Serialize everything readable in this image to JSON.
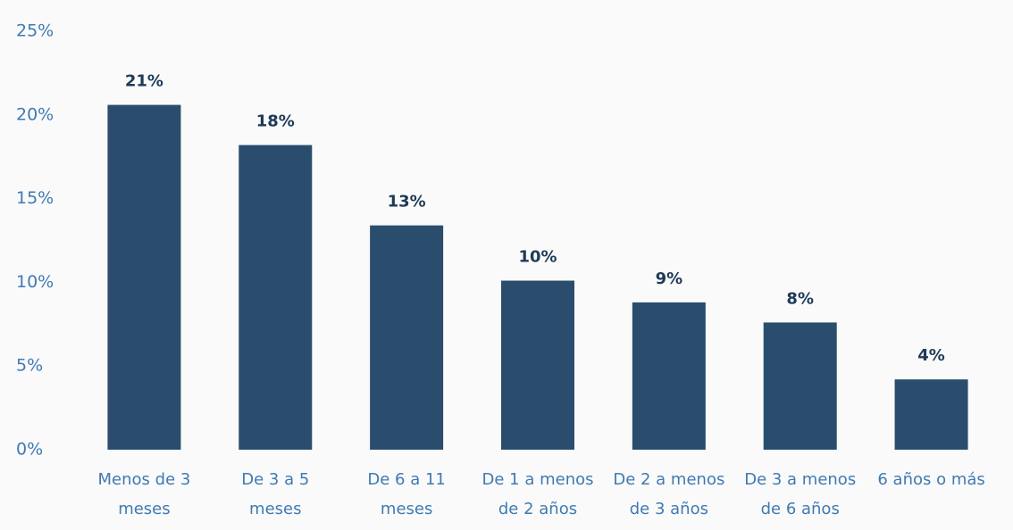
{
  "chart_data": {
    "type": "bar",
    "categories": [
      [
        "Menos de 3",
        "meses"
      ],
      [
        "De 3 a 5",
        "meses"
      ],
      [
        "De 6 a 11",
        "meses"
      ],
      [
        "De 1 a menos",
        "de 2 años"
      ],
      [
        "De 2 a menos",
        "de 3 años"
      ],
      [
        "De 3 a menos",
        "de 6 años"
      ],
      [
        "6 años o más"
      ]
    ],
    "values": [
      20.6,
      18.2,
      13.4,
      10.1,
      8.8,
      7.6,
      4.2
    ],
    "value_labels": [
      "21%",
      "18%",
      "13%",
      "10%",
      "9%",
      "8%",
      "4%"
    ],
    "color": "#2a4d6e",
    "ylim": [
      0,
      25
    ],
    "yticks": [
      {
        "value": 0,
        "label": "0%"
      },
      {
        "value": 5,
        "label": "5%"
      },
      {
        "value": 10,
        "label": "10%"
      },
      {
        "value": 15,
        "label": "15%"
      },
      {
        "value": 20,
        "label": "20%"
      },
      {
        "value": 25,
        "label": "25%"
      }
    ],
    "grid": false
  }
}
